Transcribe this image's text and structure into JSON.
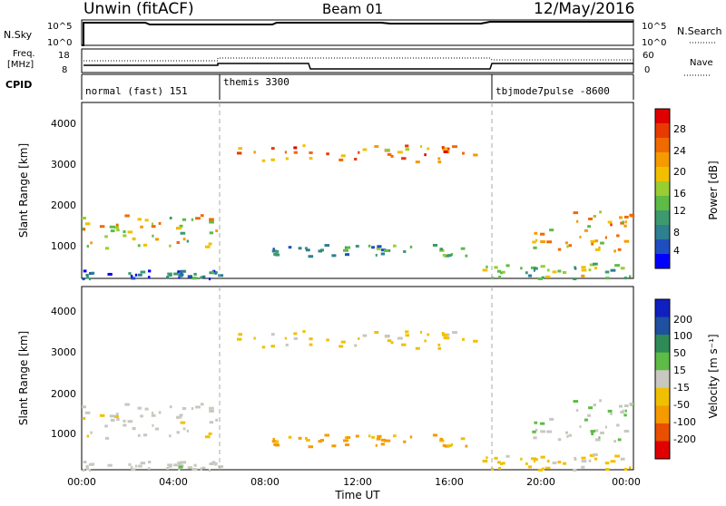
{
  "header": {
    "station": "Unwin (fitACF)",
    "beam": "Beam 01",
    "date": "12/May/2016"
  },
  "panels": {
    "nsky": {
      "label": "N.Sky",
      "left_ticks": [
        "10^5",
        "10^0"
      ],
      "right_ticks": [
        "10^5",
        "10^0"
      ],
      "right_label": "N.Search"
    },
    "freq": {
      "label_line1": "Freq.",
      "label_line2": "[MHz]",
      "left_ticks": [
        "18",
        "8"
      ],
      "right_ticks": [
        "60",
        "0"
      ],
      "right_label": "Nave"
    },
    "cpid": {
      "label": "CPID",
      "modes": [
        {
          "name": "normal (fast) 151",
          "start_hour": 0
        },
        {
          "name": "themis 3300",
          "start_hour": 6
        },
        {
          "name": "tbjmode7pulse -8600",
          "start_hour": 18
        }
      ]
    }
  },
  "power_panel": {
    "ylabel": "Slant Range [km]",
    "yticks": [
      "4000",
      "3000",
      "2000",
      "1000"
    ],
    "colorbar_label": "Power [dB]",
    "colorbar_ticks": [
      "28",
      "24",
      "20",
      "16",
      "12",
      "8",
      "4"
    ],
    "colors": [
      "#0000ff",
      "#1f4fbf",
      "#2e7f8f",
      "#3c9a6e",
      "#5dbb46",
      "#9acd32",
      "#f0c000",
      "#f59b00",
      "#f06a00",
      "#e83a00",
      "#e00000"
    ]
  },
  "velocity_panel": {
    "ylabel": "Slant Range [km]",
    "yticks": [
      "4000",
      "3000",
      "2000",
      "1000"
    ],
    "colorbar_label": "Velocity [m s⁻¹]",
    "colorbar_ticks": [
      "200",
      "100",
      "50",
      "15",
      "-15",
      "-50",
      "-100",
      "-200"
    ],
    "colors": [
      "#1020c0",
      "#2050a0",
      "#2e8b57",
      "#5dbb46",
      "#c8c8c0",
      "#f0c000",
      "#f59b00",
      "#e85000",
      "#e00000"
    ]
  },
  "xaxis": {
    "ticks": [
      "00:00",
      "04:00",
      "08:00",
      "12:00",
      "16:00",
      "20:00",
      "00:00"
    ],
    "label": "Time UT"
  },
  "chart_data": {
    "type": "heatmap",
    "title": "Unwin (fitACF) Beam 01 12/May/2016",
    "xlabel": "Time UT",
    "ylabel": "Slant Range [km]",
    "x_range_hours": [
      0,
      24
    ],
    "ylim": [
      180,
      4600
    ],
    "mode_boundaries_hours": [
      6,
      18
    ],
    "scatter_regions": [
      {
        "t0": 0,
        "t1": 6,
        "r0": 900,
        "r1": 1800,
        "power_db": 18,
        "velocity": -10
      },
      {
        "t0": 0,
        "t1": 6,
        "r0": 200,
        "r1": 400,
        "power_db": 6,
        "velocity": 0
      },
      {
        "t0": 6.5,
        "t1": 17.2,
        "r0": 3100,
        "r1": 3550,
        "power_db": 24,
        "velocity": -40
      },
      {
        "t0": 17.2,
        "t1": 24,
        "r0": 200,
        "r1": 600,
        "power_db": 14,
        "velocity": -40
      },
      {
        "t0": 19.5,
        "t1": 24,
        "r0": 900,
        "r1": 1900,
        "power_db": 20,
        "velocity": 25
      },
      {
        "t0": 8,
        "t1": 17,
        "r0": 750,
        "r1": 1050,
        "power_db": 10,
        "velocity": -100
      }
    ],
    "power_scale_db": [
      0,
      32
    ],
    "velocity_scale": [
      -250,
      250
    ]
  }
}
